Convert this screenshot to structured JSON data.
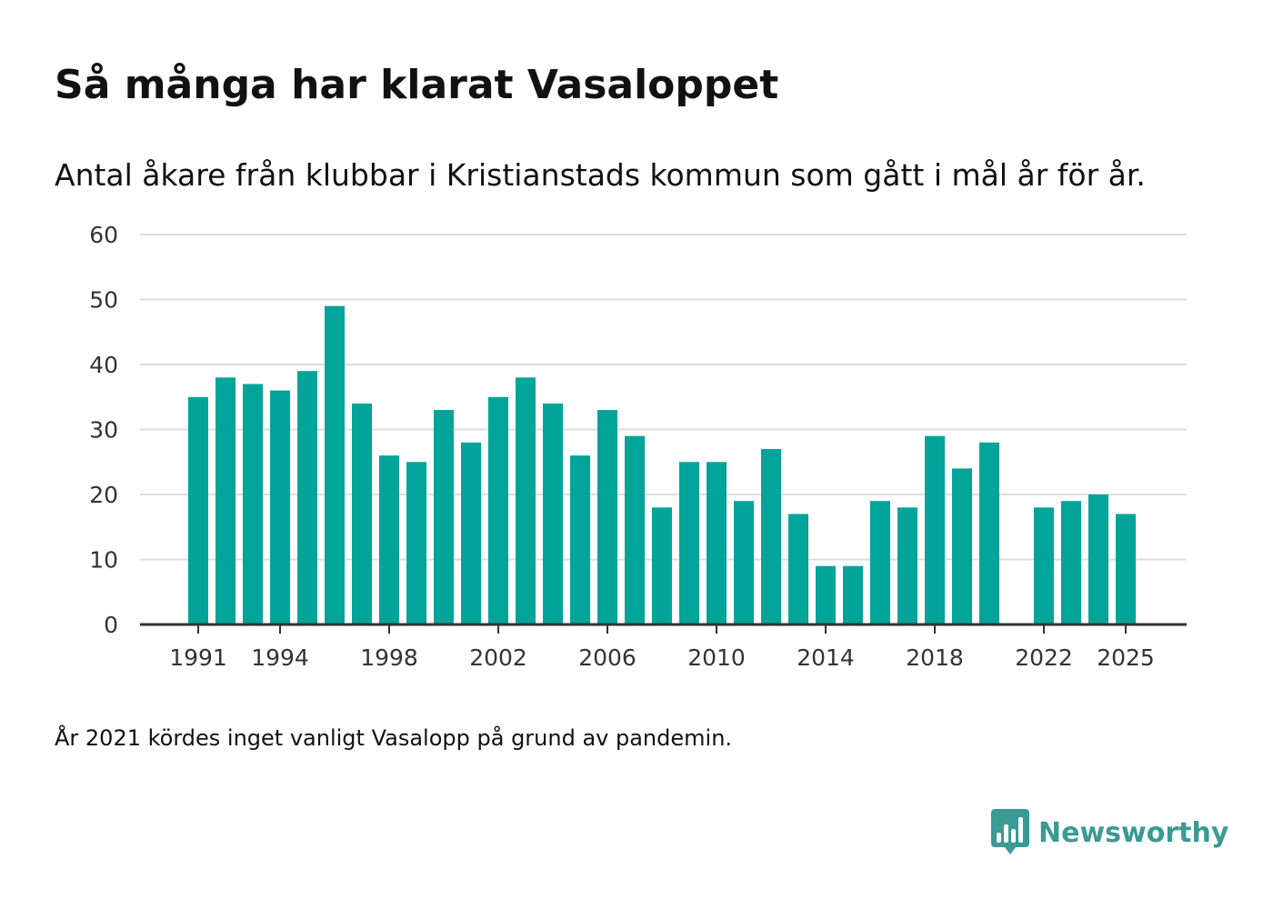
{
  "header": {
    "title": "Så många har klarat Vasaloppet",
    "subtitle": "Antal åkare från klubbar i Kristianstads kommun som gått i mål år för år."
  },
  "footer": {
    "note": "År 2021 kördes inget vanligt Vasalopp på grund av pandemin.",
    "brand_name": "Newsworthy",
    "brand_icon": "bar-chart-badge-icon"
  },
  "colors": {
    "bar": "#00a499",
    "grid": "#dddddd",
    "axis": "#333333",
    "tick_text": "#333333",
    "brand": "#3a9a94"
  },
  "chart_data": {
    "type": "bar",
    "title": "Så många har klarat Vasaloppet",
    "subtitle": "Antal åkare från klubbar i Kristianstads kommun som gått i mål år för år.",
    "xlabel": "",
    "ylabel": "",
    "categories": [
      1991,
      1992,
      1993,
      1994,
      1995,
      1996,
      1997,
      1998,
      1999,
      2000,
      2001,
      2002,
      2003,
      2004,
      2005,
      2006,
      2007,
      2008,
      2009,
      2010,
      2011,
      2012,
      2013,
      2014,
      2015,
      2016,
      2017,
      2018,
      2019,
      2020,
      2021,
      2022,
      2023,
      2024,
      2025
    ],
    "values": [
      35,
      38,
      37,
      36,
      39,
      49,
      34,
      26,
      25,
      33,
      28,
      35,
      38,
      34,
      26,
      33,
      29,
      18,
      25,
      25,
      19,
      27,
      17,
      9,
      9,
      19,
      18,
      29,
      24,
      28,
      null,
      18,
      19,
      20,
      17
    ],
    "ylim": [
      0,
      60
    ],
    "yticks": [
      0,
      10,
      20,
      30,
      40,
      50,
      60
    ],
    "xtick_labels": [
      "1991",
      "1994",
      "1998",
      "2002",
      "2006",
      "2010",
      "2014",
      "2018",
      "2022",
      "2025"
    ],
    "grid": true,
    "legend": "none"
  }
}
